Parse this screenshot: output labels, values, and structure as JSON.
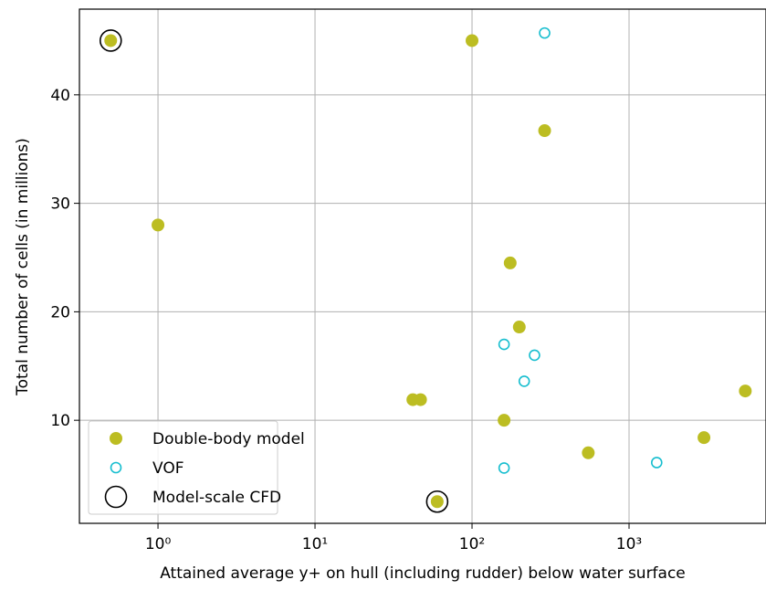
{
  "chart_data": {
    "type": "scatter",
    "x_label": "Attained average y+ on hull (including rudder) below water surface",
    "y_label": "Total number of cells (in millions)",
    "xscale": "log",
    "xlim": [
      0.316,
      7450
    ],
    "ylim": [
      0.5,
      47.9
    ],
    "xticks": [
      {
        "value": 1,
        "label": "10⁰"
      },
      {
        "value": 10,
        "label": "10¹"
      },
      {
        "value": 100,
        "label": "10²"
      },
      {
        "value": 1000,
        "label": "10³"
      }
    ],
    "yticks": [
      10,
      20,
      30,
      40
    ],
    "grid": true,
    "legend": "lower left",
    "series": [
      {
        "name": "Double-body model",
        "color": "#bcbd22",
        "marker": "filled",
        "x": [
          0.5,
          1,
          100,
          290,
          175,
          200,
          42,
          47,
          160,
          60,
          550,
          3000,
          5500
        ],
        "values": [
          45,
          28,
          45,
          36.7,
          24.5,
          18.6,
          11.9,
          11.9,
          10,
          2.5,
          7,
          8.4,
          12.7
        ]
      },
      {
        "name": "VOF",
        "color": "#17becf",
        "marker": "hollow",
        "x": [
          290,
          160,
          250,
          215,
          160,
          1500
        ],
        "values": [
          45.7,
          17,
          16,
          13.6,
          5.6,
          6.1
        ]
      },
      {
        "name": "Model-scale CFD",
        "color": "#000000",
        "marker": "hollow-large",
        "x": [
          0.5,
          60
        ],
        "values": [
          45,
          2.5
        ]
      }
    ]
  }
}
